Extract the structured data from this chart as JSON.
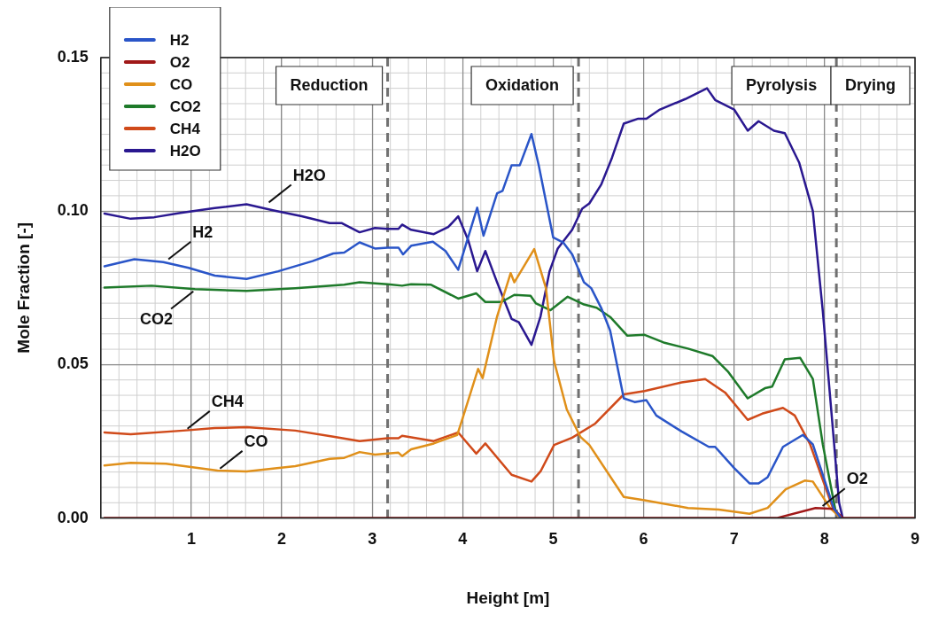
{
  "chart_data": {
    "type": "line",
    "xlabel": "Height [m]",
    "ylabel": "Mole Fraction [-]",
    "xlim": [
      0,
      9
    ],
    "xticks": [
      1,
      2,
      3,
      4,
      5,
      6,
      7,
      8,
      9
    ],
    "ylim": [
      0,
      0.15
    ],
    "yticks": [
      {
        "value": 0,
        "label": "0.00"
      },
      0.05,
      {
        "value": 0.1,
        "label": "0.10"
      },
      0.15
    ],
    "grid": true,
    "legend": "top left",
    "line_style": "solid",
    "series": [
      {
        "name": "H2",
        "color": "#2a55c8",
        "x": [
          0.04,
          0.37,
          0.69,
          0.97,
          1.26,
          1.61,
          1.96,
          2.34,
          2.57,
          2.69,
          2.86,
          3.03,
          3.17,
          3.29,
          3.34,
          3.43,
          3.67,
          3.81,
          3.95,
          4.16,
          4.23,
          4.38,
          4.44,
          4.54,
          4.63,
          4.76,
          4.84,
          5.0,
          5.11,
          5.21,
          5.34,
          5.42,
          5.53,
          5.63,
          5.78,
          5.9,
          6.03,
          6.14,
          6.42,
          6.72,
          6.79,
          7.0,
          7.17,
          7.27,
          7.37,
          7.54,
          7.76,
          7.87,
          8.1,
          8.18
        ],
        "values": [
          0.082,
          0.0843,
          0.0834,
          0.0815,
          0.079,
          0.0779,
          0.0804,
          0.0837,
          0.0862,
          0.0865,
          0.0898,
          0.0878,
          0.0881,
          0.0881,
          0.0859,
          0.0887,
          0.09,
          0.087,
          0.0809,
          0.1011,
          0.092,
          0.1058,
          0.1066,
          0.1149,
          0.1149,
          0.1251,
          0.1149,
          0.0914,
          0.0898,
          0.0859,
          0.0768,
          0.0749,
          0.0685,
          0.061,
          0.039,
          0.0378,
          0.0384,
          0.0334,
          0.0282,
          0.0232,
          0.0232,
          0.0163,
          0.0113,
          0.0113,
          0.0133,
          0.0232,
          0.0271,
          0.024,
          0.0033,
          0
        ]
      },
      {
        "name": "O2",
        "color": "#a01818",
        "x": [
          0.04,
          7.2,
          7.47,
          7.9,
          8.1,
          8.2,
          9.0
        ],
        "values": [
          0,
          0,
          0,
          0.0033,
          0.003,
          0,
          0
        ]
      },
      {
        "name": "CO",
        "color": "#e0901a",
        "x": [
          0.04,
          0.33,
          0.72,
          1.29,
          1.61,
          2.15,
          2.53,
          2.69,
          2.86,
          3.03,
          3.17,
          3.29,
          3.33,
          3.43,
          3.68,
          3.94,
          4.0,
          4.17,
          4.22,
          4.38,
          4.53,
          4.57,
          4.79,
          4.92,
          5.01,
          5.15,
          5.3,
          5.4,
          5.78,
          6.01,
          6.49,
          6.83,
          7.17,
          7.37,
          7.57,
          7.78,
          7.87,
          8.06,
          8.18
        ],
        "values": [
          0.0171,
          0.018,
          0.0177,
          0.0155,
          0.0152,
          0.0169,
          0.0193,
          0.0196,
          0.0215,
          0.0207,
          0.021,
          0.0213,
          0.0202,
          0.0224,
          0.0243,
          0.0271,
          0.0326,
          0.0486,
          0.0456,
          0.0657,
          0.0798,
          0.0768,
          0.0876,
          0.0749,
          0.0511,
          0.0354,
          0.0265,
          0.0238,
          0.0069,
          0.0058,
          0.0033,
          0.0028,
          0.0014,
          0.0033,
          0.0094,
          0.0122,
          0.0119,
          0.0033,
          0
        ]
      },
      {
        "name": "CO2",
        "color": "#1e7a2a",
        "x": [
          0.04,
          0.56,
          1.04,
          1.61,
          2.15,
          2.69,
          2.86,
          3.17,
          3.33,
          3.43,
          3.65,
          3.95,
          4.15,
          4.25,
          4.43,
          4.57,
          4.75,
          4.81,
          4.97,
          5.16,
          5.34,
          5.48,
          5.63,
          5.82,
          6.01,
          6.22,
          6.49,
          6.76,
          6.93,
          7.15,
          7.34,
          7.42,
          7.56,
          7.73,
          7.87,
          7.98,
          8.12,
          8.18
        ],
        "values": [
          0.0751,
          0.0757,
          0.0746,
          0.074,
          0.0749,
          0.076,
          0.0768,
          0.0762,
          0.0757,
          0.0762,
          0.076,
          0.0715,
          0.0732,
          0.0704,
          0.0704,
          0.0727,
          0.0724,
          0.0699,
          0.0677,
          0.0721,
          0.0696,
          0.0685,
          0.0655,
          0.0594,
          0.0597,
          0.0572,
          0.0552,
          0.0528,
          0.0478,
          0.039,
          0.0423,
          0.0428,
          0.0517,
          0.0522,
          0.0453,
          0.024,
          0.0025,
          0
        ]
      },
      {
        "name": "CH4",
        "color": "#d04a1a",
        "x": [
          0.04,
          0.33,
          0.91,
          1.26,
          1.61,
          2.15,
          2.57,
          2.86,
          3.17,
          3.29,
          3.33,
          3.68,
          3.95,
          4.15,
          4.25,
          4.54,
          4.76,
          4.86,
          5.01,
          5.21,
          5.46,
          5.78,
          6.01,
          6.42,
          6.68,
          6.9,
          7.15,
          7.31,
          7.54,
          7.67,
          7.84,
          8.1,
          8.18
        ],
        "values": [
          0.0279,
          0.0273,
          0.0285,
          0.0293,
          0.0296,
          0.0285,
          0.0265,
          0.0251,
          0.026,
          0.026,
          0.0268,
          0.0251,
          0.0279,
          0.021,
          0.0243,
          0.0141,
          0.0119,
          0.0152,
          0.0238,
          0.0262,
          0.0307,
          0.0403,
          0.0414,
          0.0442,
          0.0453,
          0.0409,
          0.032,
          0.034,
          0.0359,
          0.0334,
          0.024,
          0.0025,
          0
        ]
      },
      {
        "name": "H2O",
        "color": "#2a1890",
        "x": [
          0.04,
          0.33,
          0.59,
          0.88,
          1.26,
          1.61,
          1.9,
          2.22,
          2.53,
          2.66,
          2.86,
          3.03,
          3.17,
          3.29,
          3.33,
          3.43,
          3.68,
          3.84,
          3.95,
          4.06,
          4.16,
          4.25,
          4.38,
          4.54,
          4.62,
          4.76,
          4.86,
          4.96,
          5.05,
          5.21,
          5.32,
          5.4,
          5.53,
          5.65,
          5.78,
          5.94,
          6.03,
          6.18,
          6.46,
          6.7,
          6.79,
          7.0,
          7.15,
          7.27,
          7.44,
          7.56,
          7.72,
          7.87,
          7.98,
          8.08,
          8.16,
          8.2
        ],
        "values": [
          0.0992,
          0.0975,
          0.098,
          0.0994,
          0.101,
          0.1022,
          0.1003,
          0.0983,
          0.0961,
          0.0961,
          0.0931,
          0.0945,
          0.0942,
          0.0942,
          0.0956,
          0.0939,
          0.0925,
          0.0948,
          0.0983,
          0.0906,
          0.0804,
          0.087,
          0.0768,
          0.0649,
          0.0638,
          0.0564,
          0.0657,
          0.0804,
          0.0878,
          0.0939,
          0.1008,
          0.1025,
          0.1086,
          0.1174,
          0.1285,
          0.1301,
          0.1301,
          0.1331,
          0.1365,
          0.14,
          0.1362,
          0.1331,
          0.1262,
          0.1293,
          0.1262,
          0.1254,
          0.1157,
          0.1,
          0.0674,
          0.0329,
          0.005,
          0
        ]
      }
    ],
    "ref_lines": [
      {
        "axis": "x",
        "value": 3.17,
        "label": null,
        "color": "#707070",
        "line_style": "dashed"
      },
      {
        "axis": "x",
        "value": 5.28,
        "label": null,
        "color": "#707070",
        "line_style": "dashed"
      },
      {
        "axis": "x",
        "value": 8.13,
        "label": null,
        "color": "#707070",
        "line_style": "dashed"
      }
    ],
    "annotations": [
      "Reduction",
      "Oxidation",
      "Pyrolysis",
      "Drying",
      {
        "text": "H2O",
        "x": 1.83,
        "y": 0.1022
      },
      {
        "text": "H2",
        "x": 0.72,
        "y": 0.0837
      },
      {
        "text": "CO2",
        "x": 1.05,
        "y": 0.0745
      },
      {
        "text": "CH4",
        "x": 0.93,
        "y": 0.0285
      },
      {
        "text": "CO",
        "x": 1.29,
        "y": 0.0155
      },
      {
        "text": "O2",
        "x": 7.95,
        "y": 0.0033
      }
    ]
  }
}
